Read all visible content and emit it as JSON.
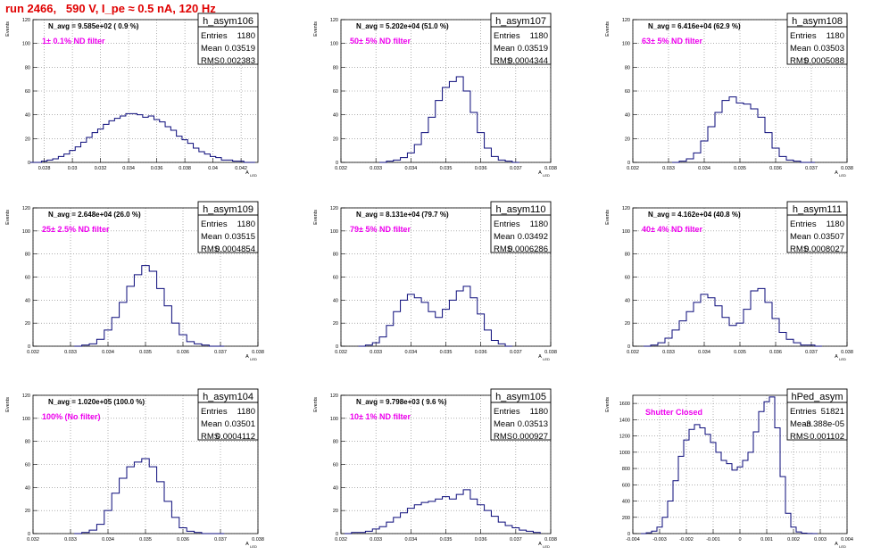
{
  "page_title": "run 2466,   590 V, I_pe ≈ 0.5 nA, 120 Hz",
  "stats_labels": {
    "entries": "Entries",
    "mean": "Mean",
    "rms": "RMS"
  },
  "y_axis_title": "Events",
  "x_axis_title": "A",
  "x_axis_sub": "LED",
  "colors": {
    "histogram": "#0a0a7a",
    "annotation": "#ee00ee",
    "title": "#e00000",
    "grid": "#808080"
  },
  "chart_data": [
    {
      "type": "histogram",
      "name": "h_asym106",
      "entries": "1180",
      "mean": "0.03519",
      "rms": "0.002383",
      "navg_label": "N_avg = 9.585e+02 ( 0.9 %)",
      "filter_label": "1± 0.1% ND filter",
      "xlim": [
        0.0272,
        0.0432
      ],
      "ylim": [
        0,
        120
      ],
      "xticks": [
        0.028,
        0.03,
        0.032,
        0.034,
        0.036,
        0.038,
        0.04,
        0.042
      ],
      "xtick_labels": [
        "0.028",
        "0.03",
        "0.032",
        "0.034",
        "0.036",
        "0.038",
        "0.04",
        "0.042"
      ],
      "yticks": [
        0,
        20,
        40,
        60,
        80,
        100,
        120
      ],
      "ytick_labels": [
        "0",
        "20",
        "40",
        "60",
        "80",
        "100",
        "120"
      ],
      "centers": [
        0.0272,
        0.0276,
        0.028,
        0.0284,
        0.0288,
        0.0292,
        0.0296,
        0.03,
        0.0304,
        0.0308,
        0.0312,
        0.0316,
        0.032,
        0.0324,
        0.0328,
        0.0332,
        0.0336,
        0.034,
        0.0344,
        0.0348,
        0.0352,
        0.0356,
        0.036,
        0.0364,
        0.0368,
        0.0372,
        0.0376,
        0.038,
        0.0384,
        0.0388,
        0.0392,
        0.0396,
        0.04,
        0.0404,
        0.0408,
        0.0412,
        0.0416,
        0.042,
        0.0424,
        0.0428
      ],
      "values": [
        0,
        0,
        1,
        2,
        3,
        5,
        7,
        10,
        13,
        17,
        21,
        25,
        28,
        32,
        35,
        37,
        39,
        41,
        41,
        40,
        38,
        39,
        36,
        34,
        30,
        27,
        22,
        19,
        16,
        12,
        9,
        7,
        5,
        4,
        2,
        2,
        1,
        1,
        0,
        0
      ]
    },
    {
      "type": "histogram",
      "name": "h_asym107",
      "entries": "1180",
      "mean": "0.03519",
      "rms": "0.0004344",
      "navg_label": "N_avg = 5.202e+04 (51.0 %)",
      "filter_label": "50± 5% ND filter",
      "xlim": [
        0.032,
        0.038
      ],
      "ylim": [
        0,
        120
      ],
      "xticks": [
        0.032,
        0.033,
        0.034,
        0.035,
        0.036,
        0.037,
        0.038
      ],
      "xtick_labels": [
        "0.032",
        "0.033",
        "0.034",
        "0.035",
        "0.036",
        "0.037",
        "0.038"
      ],
      "yticks": [
        0,
        20,
        40,
        60,
        80,
        100,
        120
      ],
      "ytick_labels": [
        "0",
        "20",
        "40",
        "60",
        "80",
        "100",
        "120"
      ],
      "centers": [
        0.0332,
        0.0334,
        0.0336,
        0.0338,
        0.034,
        0.0342,
        0.0344,
        0.0346,
        0.0348,
        0.035,
        0.0352,
        0.0354,
        0.0356,
        0.0358,
        0.036,
        0.0362,
        0.0364,
        0.0366,
        0.0368,
        0.037
      ],
      "values": [
        0,
        1,
        2,
        4,
        8,
        15,
        25,
        38,
        52,
        63,
        68,
        72,
        60,
        42,
        25,
        12,
        5,
        2,
        1,
        0
      ]
    },
    {
      "type": "histogram",
      "name": "h_asym108",
      "entries": "1180",
      "mean": "0.03503",
      "rms": "0.0005088",
      "navg_label": "N_avg = 6.416e+04 (62.9 %)",
      "filter_label": "63± 5% ND filter",
      "xlim": [
        0.032,
        0.038
      ],
      "ylim": [
        0,
        120
      ],
      "xticks": [
        0.032,
        0.033,
        0.034,
        0.035,
        0.036,
        0.037,
        0.038
      ],
      "xtick_labels": [
        "0.032",
        "0.033",
        "0.034",
        "0.035",
        "0.036",
        "0.037",
        "0.038"
      ],
      "yticks": [
        0,
        20,
        40,
        60,
        80,
        100,
        120
      ],
      "ytick_labels": [
        "0",
        "20",
        "40",
        "60",
        "80",
        "100",
        "120"
      ],
      "centers": [
        0.0332,
        0.0334,
        0.0336,
        0.0338,
        0.034,
        0.0342,
        0.0344,
        0.0346,
        0.0348,
        0.035,
        0.0352,
        0.0354,
        0.0356,
        0.0358,
        0.036,
        0.0362,
        0.0364,
        0.0366,
        0.0368,
        0.037
      ],
      "values": [
        0,
        1,
        3,
        8,
        18,
        30,
        42,
        52,
        55,
        50,
        49,
        45,
        38,
        25,
        12,
        5,
        2,
        1,
        0,
        0
      ]
    },
    {
      "type": "histogram",
      "name": "h_asym109",
      "entries": "1180",
      "mean": "0.03515",
      "rms": "0.0004854",
      "navg_label": "N_avg = 2.648e+04 (26.0 %)",
      "filter_label": "25± 2.5% ND filter",
      "xlim": [
        0.032,
        0.038
      ],
      "ylim": [
        0,
        120
      ],
      "xticks": [
        0.032,
        0.033,
        0.034,
        0.035,
        0.036,
        0.037,
        0.038
      ],
      "xtick_labels": [
        "0.032",
        "0.033",
        "0.034",
        "0.035",
        "0.036",
        "0.037",
        "0.038"
      ],
      "yticks": [
        0,
        20,
        40,
        60,
        80,
        100,
        120
      ],
      "ytick_labels": [
        "0",
        "20",
        "40",
        "60",
        "80",
        "100",
        "120"
      ],
      "centers": [
        0.0332,
        0.0334,
        0.0336,
        0.0338,
        0.034,
        0.0342,
        0.0344,
        0.0346,
        0.0348,
        0.035,
        0.0352,
        0.0354,
        0.0356,
        0.0358,
        0.036,
        0.0362,
        0.0364,
        0.0366,
        0.0368,
        0.037
      ],
      "values": [
        0,
        1,
        2,
        6,
        14,
        25,
        38,
        52,
        62,
        70,
        65,
        50,
        35,
        20,
        10,
        4,
        2,
        1,
        0,
        0
      ]
    },
    {
      "type": "histogram",
      "name": "h_asym110",
      "entries": "1180",
      "mean": "0.03492",
      "rms": "0.0006286",
      "navg_label": "N_avg = 8.131e+04 (79.7 %)",
      "filter_label": "79± 5% ND filter",
      "xlim": [
        0.032,
        0.038
      ],
      "ylim": [
        0,
        120
      ],
      "xticks": [
        0.032,
        0.033,
        0.034,
        0.035,
        0.036,
        0.037,
        0.038
      ],
      "xtick_labels": [
        "0.032",
        "0.033",
        "0.034",
        "0.035",
        "0.036",
        "0.037",
        "0.038"
      ],
      "yticks": [
        0,
        20,
        40,
        60,
        80,
        100,
        120
      ],
      "ytick_labels": [
        "0",
        "20",
        "40",
        "60",
        "80",
        "100",
        "120"
      ],
      "centers": [
        0.0326,
        0.0328,
        0.033,
        0.0332,
        0.0334,
        0.0336,
        0.0338,
        0.034,
        0.0342,
        0.0344,
        0.0346,
        0.0348,
        0.035,
        0.0352,
        0.0354,
        0.0356,
        0.0358,
        0.036,
        0.0362,
        0.0364,
        0.0366,
        0.0368
      ],
      "values": [
        0,
        1,
        3,
        8,
        18,
        30,
        40,
        45,
        42,
        38,
        30,
        25,
        32,
        40,
        48,
        52,
        42,
        28,
        14,
        5,
        2,
        0
      ]
    },
    {
      "type": "histogram",
      "name": "h_asym111",
      "entries": "1180",
      "mean": "0.03507",
      "rms": "0.0008027",
      "navg_label": "N_avg = 4.162e+04 (40.8 %)",
      "filter_label": "40± 4% ND filter",
      "xlim": [
        0.032,
        0.038
      ],
      "ylim": [
        0,
        120
      ],
      "xticks": [
        0.032,
        0.033,
        0.034,
        0.035,
        0.036,
        0.037,
        0.038
      ],
      "xtick_labels": [
        "0.032",
        "0.033",
        "0.034",
        "0.035",
        "0.036",
        "0.037",
        "0.038"
      ],
      "yticks": [
        0,
        20,
        40,
        60,
        80,
        100,
        120
      ],
      "ytick_labels": [
        "0",
        "20",
        "40",
        "60",
        "80",
        "100",
        "120"
      ],
      "centers": [
        0.0324,
        0.0326,
        0.0328,
        0.033,
        0.0332,
        0.0334,
        0.0336,
        0.0338,
        0.034,
        0.0342,
        0.0344,
        0.0346,
        0.0348,
        0.035,
        0.0352,
        0.0354,
        0.0356,
        0.0358,
        0.036,
        0.0362,
        0.0364,
        0.0366,
        0.0368,
        0.037,
        0.0372
      ],
      "values": [
        0,
        1,
        3,
        7,
        14,
        22,
        30,
        38,
        45,
        42,
        35,
        25,
        18,
        20,
        32,
        48,
        50,
        38,
        24,
        12,
        6,
        3,
        1,
        1,
        0
      ]
    },
    {
      "type": "histogram",
      "name": "h_asym104",
      "entries": "1180",
      "mean": "0.03501",
      "rms": "0.0004112",
      "navg_label": "N_avg = 1.020e+05 (100.0 %)",
      "filter_label": "100% (No filter)",
      "xlim": [
        0.032,
        0.038
      ],
      "ylim": [
        0,
        120
      ],
      "xticks": [
        0.032,
        0.033,
        0.034,
        0.035,
        0.036,
        0.037,
        0.038
      ],
      "xtick_labels": [
        "0.032",
        "0.033",
        "0.034",
        "0.035",
        "0.036",
        "0.037",
        "0.038"
      ],
      "yticks": [
        0,
        20,
        40,
        60,
        80,
        100,
        120
      ],
      "ytick_labels": [
        "0",
        "20",
        "40",
        "60",
        "80",
        "100",
        "120"
      ],
      "centers": [
        0.0332,
        0.0334,
        0.0336,
        0.0338,
        0.034,
        0.0342,
        0.0344,
        0.0346,
        0.0348,
        0.035,
        0.0352,
        0.0354,
        0.0356,
        0.0358,
        0.036,
        0.0362,
        0.0364,
        0.0366,
        0.0368,
        0.037
      ],
      "values": [
        0,
        1,
        3,
        8,
        20,
        35,
        48,
        58,
        62,
        65,
        58,
        45,
        28,
        14,
        5,
        2,
        1,
        0,
        0,
        0
      ]
    },
    {
      "type": "histogram",
      "name": "h_asym105",
      "entries": "1180",
      "mean": "0.03513",
      "rms": "0.000927",
      "navg_label": "N_avg = 9.798e+03 ( 9.6 %)",
      "filter_label": "10± 1% ND filter",
      "xlim": [
        0.032,
        0.038
      ],
      "ylim": [
        0,
        120
      ],
      "xticks": [
        0.032,
        0.033,
        0.034,
        0.035,
        0.036,
        0.037,
        0.038
      ],
      "xtick_labels": [
        "0.032",
        "0.033",
        "0.034",
        "0.035",
        "0.036",
        "0.037",
        "0.038"
      ],
      "yticks": [
        0,
        20,
        40,
        60,
        80,
        100,
        120
      ],
      "ytick_labels": [
        "0",
        "20",
        "40",
        "60",
        "80",
        "100",
        "120"
      ],
      "centers": [
        0.0322,
        0.0324,
        0.0326,
        0.0328,
        0.033,
        0.0332,
        0.0334,
        0.0336,
        0.0338,
        0.034,
        0.0342,
        0.0344,
        0.0346,
        0.0348,
        0.035,
        0.0352,
        0.0354,
        0.0356,
        0.0358,
        0.036,
        0.0362,
        0.0364,
        0.0366,
        0.0368,
        0.037,
        0.0372,
        0.0374,
        0.0376
      ],
      "values": [
        0,
        1,
        1,
        2,
        4,
        6,
        10,
        14,
        18,
        22,
        25,
        27,
        28,
        30,
        32,
        30,
        34,
        38,
        30,
        25,
        20,
        15,
        10,
        7,
        5,
        3,
        2,
        1
      ]
    },
    {
      "type": "histogram",
      "name": "hPed_asym",
      "entries": "51821",
      "mean": "-3.388e-05",
      "rms": "0.001102",
      "navg_label": "",
      "filter_label": "Shutter Closed",
      "xlim": [
        -0.004,
        0.004
      ],
      "ylim": [
        0,
        1700
      ],
      "xticks": [
        -0.004,
        -0.003,
        -0.002,
        -0.001,
        0,
        0.001,
        0.002,
        0.003,
        0.004
      ],
      "xtick_labels": [
        "-0.004",
        "-0.003",
        "-0.002",
        "-0.001",
        "0",
        "0.001",
        "0.002",
        "0.003",
        "0.004"
      ],
      "yticks": [
        0,
        200,
        400,
        600,
        800,
        1000,
        1200,
        1400,
        1600
      ],
      "ytick_labels": [
        "0",
        "200",
        "400",
        "600",
        "800",
        "1000",
        "1200",
        "1400",
        "1600"
      ],
      "centers": [
        -0.0036,
        -0.0034,
        -0.0032,
        -0.003,
        -0.0028,
        -0.0026,
        -0.0024,
        -0.0022,
        -0.002,
        -0.0018,
        -0.0016,
        -0.0014,
        -0.0012,
        -0.001,
        -0.0008,
        -0.0006,
        -0.0004,
        -0.0002,
        0,
        0.0002,
        0.0004,
        0.0006,
        0.0008,
        0.001,
        0.0012,
        0.0014,
        0.0016,
        0.0018,
        0.002,
        0.0022,
        0.0024,
        0.0026,
        0.0028
      ],
      "values": [
        0,
        10,
        30,
        80,
        200,
        400,
        650,
        950,
        1150,
        1280,
        1340,
        1300,
        1220,
        1120,
        1000,
        900,
        860,
        780,
        820,
        900,
        1000,
        1250,
        1500,
        1620,
        1680,
        1300,
        700,
        250,
        80,
        20,
        5,
        2,
        0
      ]
    }
  ]
}
